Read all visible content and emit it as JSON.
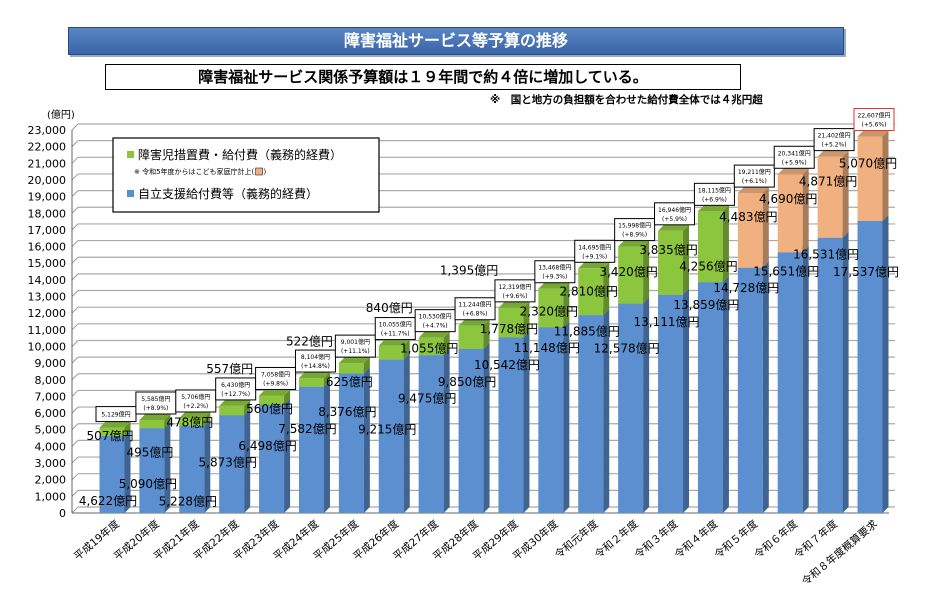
{
  "banner_title": "障害福祉サービス等予算の推移",
  "subtitle": "障害福祉サービス関係予算額は１９年間で約４倍に増加している。",
  "note": "※　国と地方の負担額を合わせた給付費全体では４兆円超",
  "colors": {
    "blue": "#5b8fd0",
    "green": "#8cc63e",
    "orange": "#f0b080",
    "highlight": "#e03030"
  },
  "chart_data": {
    "type": "bar",
    "stacked": true,
    "ylabel": "(億円)",
    "ylim": [
      0,
      23000
    ],
    "ytick_step": 1000,
    "grid": true,
    "legend_placement": "top-left",
    "legend": {
      "green": "障害児措置費・給付費（義務的経費）",
      "green_note": "※ 令和5年度からはこども家庭庁計上(",
      "green_note_end": ")",
      "blue": "自立支援給付費等（義務的経費）"
    },
    "categories": [
      "平成19年度",
      "平成20年度",
      "平成21年度",
      "平成22年度",
      "平成23年度",
      "平成24年度",
      "平成25年度",
      "平成26年度",
      "平成27年度",
      "平成28年度",
      "平成29年度",
      "平成30年度",
      "令和元年度",
      "令和２年度",
      "令和３年度",
      "令和４年度",
      "令和５年度",
      "令和６年度",
      "令和７年度",
      "令和８年度概算要求"
    ],
    "series": [
      {
        "name": "自立支援給付費等（義務的経費）",
        "values": [
          4622,
          5090,
          5228,
          5873,
          6498,
          7582,
          8376,
          9215,
          9475,
          9850,
          10542,
          11148,
          11885,
          12578,
          13111,
          13859,
          14728,
          15651,
          16531,
          17537
        ],
        "labels": [
          "4,622億円",
          "5,090億円",
          "5,228億円",
          "5,873億円",
          "6,498億円",
          "7,582億円",
          "8,376億円",
          "9,215億円",
          "9,475億円",
          "9,850億円",
          "10,542億円",
          "11,148億円",
          "11,885億円",
          "12,578億円",
          "13,111億円",
          "13,859億円",
          "14,728億円",
          "15,651億円",
          "16,531億円",
          "17,537億円"
        ]
      },
      {
        "name": "障害児措置費・給付費（義務的経費）",
        "values": [
          507,
          495,
          478,
          557,
          560,
          522,
          625,
          840,
          1055,
          1395,
          1778,
          2320,
          2810,
          3420,
          3835,
          4256,
          4483,
          4690,
          4871,
          5070
        ],
        "labels": [
          "507億円",
          "495億円",
          "478億円",
          "557億円",
          "560億円",
          "522億円",
          "625億円",
          "840億円",
          "1,055億円",
          "1,395億円",
          "1,778億円",
          "2,320億円",
          "2,810億円",
          "3,420億円",
          "3,835億円",
          "4,256億円",
          "4,483億円",
          "4,690億円",
          "4,871億円",
          "5,070億円"
        ]
      }
    ],
    "kodomo_from_index": 16,
    "totals": [
      "5,129億円",
      "5,585億円",
      "5,706億円",
      "6,430億円",
      "7,058億円",
      "8,104億円",
      "9,001億円",
      "10,055億円",
      "10,530億円",
      "11,244億円",
      "12,319億円",
      "13,468億円",
      "14,695億円",
      "15,998億円",
      "16,946億円",
      "18,115億円",
      "19,211億円",
      "20,341億円",
      "21,402億円",
      "22,607億円"
    ],
    "growth": [
      "",
      "(+8.9%)",
      "(+2.2%)",
      "(+12.7%)",
      "(+9.8%)",
      "(+14.8%)",
      "(+11.1%)",
      "(+11.7%)",
      "(+4.7%)",
      "(+6.8%)",
      "(+9.6%)",
      "(+9.3%)",
      "(+9.1%)",
      "(+8.9%)",
      "(+5.9%)",
      "(+6.9%)",
      "(+6.1%)",
      "(+5.9%)",
      "(+5.2%)",
      "(+5.6%)"
    ]
  }
}
